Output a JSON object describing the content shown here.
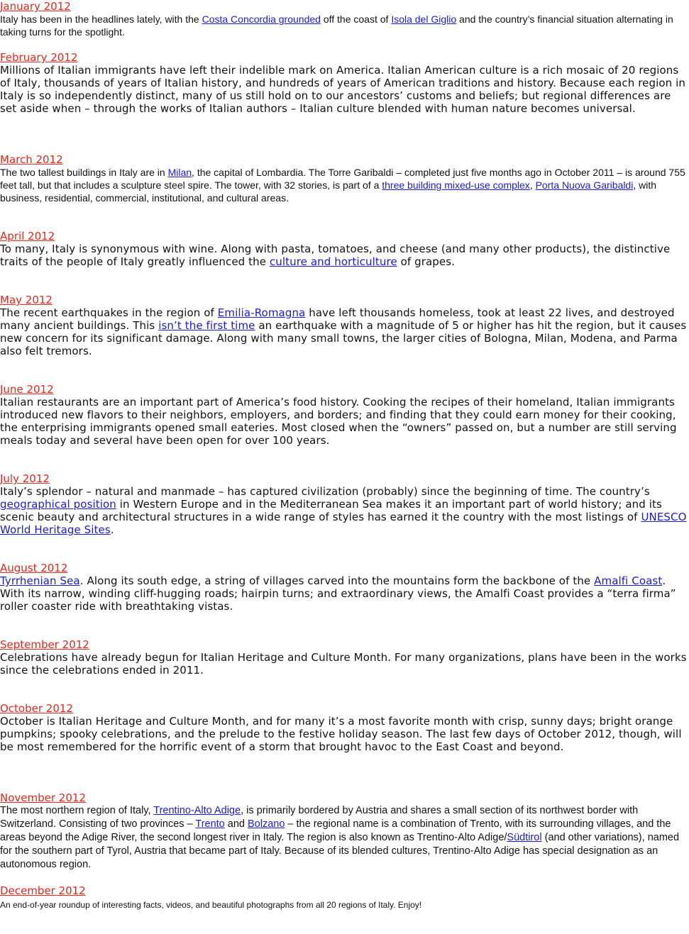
{
  "entries": [
    {
      "month": "January 2012",
      "parts": [
        {
          "t": " Italy has been in the headlines lately, with the "
        },
        {
          "t": "Costa Concordia grounded",
          "link": true
        },
        {
          "t": " off the coast of "
        },
        {
          "t": "Isola del Giglio",
          "link": true
        },
        {
          "t": " and the country’s financial situation alternating in taking turns for the spotlight."
        }
      ]
    },
    {
      "month": "February 2012",
      "parts": [
        {
          "t": " Millions of Italian immigrants have left their indelible mark on America. Italian American culture is a rich mosaic of 20 regions of Italy, thousands of years of Italian history, and hundreds of years of American traditions and history. Because each region in Italy is so independently distinct, many of us still hold on to our ancestors’ customs and beliefs; but regional differences are set aside when – through the works of Italian authors – Italian culture blended with human nature becomes universal."
        }
      ]
    },
    {
      "month": "March 2012",
      "parts": [
        {
          "t": " The two tallest buildings in Italy are in "
        },
        {
          "t": "Milan",
          "link": true
        },
        {
          "t": ", the capital of Lombardia. The Torre Garibaldi – completed just five months ago in October 2011 – is around 755 feet tall, but that includes a sculpture steel spire. The tower, with 32 stories, is part of a "
        },
        {
          "t": "three building mixed-use complex",
          "link": true
        },
        {
          "t": ", "
        },
        {
          "t": "Porta Nuova Garibaldi",
          "link": true
        },
        {
          "t": ", with business, residential, commercial, institutional, and cultural areas."
        }
      ]
    },
    {
      "month": "April 2012",
      "parts": [
        {
          "t": " To many, Italy is synonymous with wine. Along with pasta, tomatoes, and cheese (and many other products), the distinctive traits of the people of Italy greatly influenced the "
        },
        {
          "t": "culture and horticulture",
          "link": true
        },
        {
          "t": " of grapes."
        }
      ]
    },
    {
      "month": "May 2012",
      "parts": [
        {
          "t": " The recent earthquakes in the region of "
        },
        {
          "t": "Emilia-Romagna",
          "link": true
        },
        {
          "t": " have left thousands homeless, took at least 22 lives, and destroyed many ancient buildings. This "
        },
        {
          "t": "isn’t the first time",
          "link": true
        },
        {
          "t": " an earthquake with a magnitude of 5 or higher has hit the region, but it causes new concern for its significant damage. Along with many small towns, the larger cities of Bologna, Milan, Modena, and Parma also felt tremors."
        }
      ]
    },
    {
      "month": "June 2012",
      "parts": [
        {
          "t": " Italian restaurants are an important part of America’s food history. Cooking the recipes of their homeland, Italian immigrants introduced new flavors to their neighbors, employers, and borders; and finding that they could earn money for their cooking, the enterprising immigrants opened small eateries. Most closed when the “owners” passed on, but a number are still serving meals today and several have been open for over 100 years."
        }
      ]
    },
    {
      "month": "July 2012",
      "parts": [
        {
          "t": "Italy’s splendor – natural and manmade – has captured civilization (probably) since the beginning of time. The country’s "
        },
        {
          "t": "geographical position",
          "link": true
        },
        {
          "t": " in Western Europe and in the Mediterranean Sea makes it an important part of world history; and its scenic beauty and architectural structures in a wide range of styles has earned it the country with the most listings of "
        },
        {
          "t": "UNESCO World Heritage Sites",
          "link": true
        },
        {
          "t": "."
        }
      ]
    },
    {
      "month": "August 2012",
      "parts": [
        {
          "t": "Tyrrhenian Sea",
          "link": true
        },
        {
          "t": ". Along its south edge, a string of villages carved into the mountains form the backbone of the "
        },
        {
          "t": "Amalfi Coast",
          "link": true
        },
        {
          "t": ". With its narrow, winding cliff-hugging roads; hairpin turns; and extraordinary views, the Amalfi Coast provides a “terra firma” roller coaster ride with breathtaking vistas."
        }
      ]
    },
    {
      "month": "September 2012",
      "parts": [
        {
          "t": "Celebrations have already begun for Italian Heritage and Culture Month. For many organizations, plans have been in the works since the celebrations ended in 2011."
        }
      ]
    },
    {
      "month": "October 2012",
      "parts": [
        {
          "t": "October is Italian Heritage and Culture Month, and for many it’s a most favorite month with crisp, sunny days; bright orange pumpkins; spooky celebrations, and the prelude to the festive holiday season. The last few days of October 2012, though, will be most remembered for the horrific event of a storm that brought havoc to the East Coast and beyond."
        }
      ]
    },
    {
      "month": "November 2012",
      "parts": [
        {
          "t": "The most northern region of Italy, "
        },
        {
          "t": "Trentino-Alto Adige",
          "link": true
        },
        {
          "t": ", is primarily bordered by Austria and shares a small section of its northwest border with Switzerland. Consisting of two provinces – "
        },
        {
          "t": "Trento",
          "link": true
        },
        {
          "t": " and "
        },
        {
          "t": "Bolzano",
          "link": true
        },
        {
          "t": " – the regional name is a combination of Trento, with its surrounding villages, and the areas beyond the Adige River, the second longest river in Italy. The region is also known as Trentino-Alto Adige/"
        },
        {
          "t": "Südtirol",
          "link": true
        },
        {
          "t": " (and other variations), named for the southern part of Tyrol, Austria that became part of Italy. Because of its blended cultures, Trentino-Alto Adige has special designation as an autonomous region."
        }
      ]
    },
    {
      "month": "December 2012",
      "parts": [
        {
          "t": " An end-of-year roundup of interesting facts, videos, and beautiful photographs from all 20 regions of Italy. Enjoy!"
        }
      ]
    }
  ]
}
